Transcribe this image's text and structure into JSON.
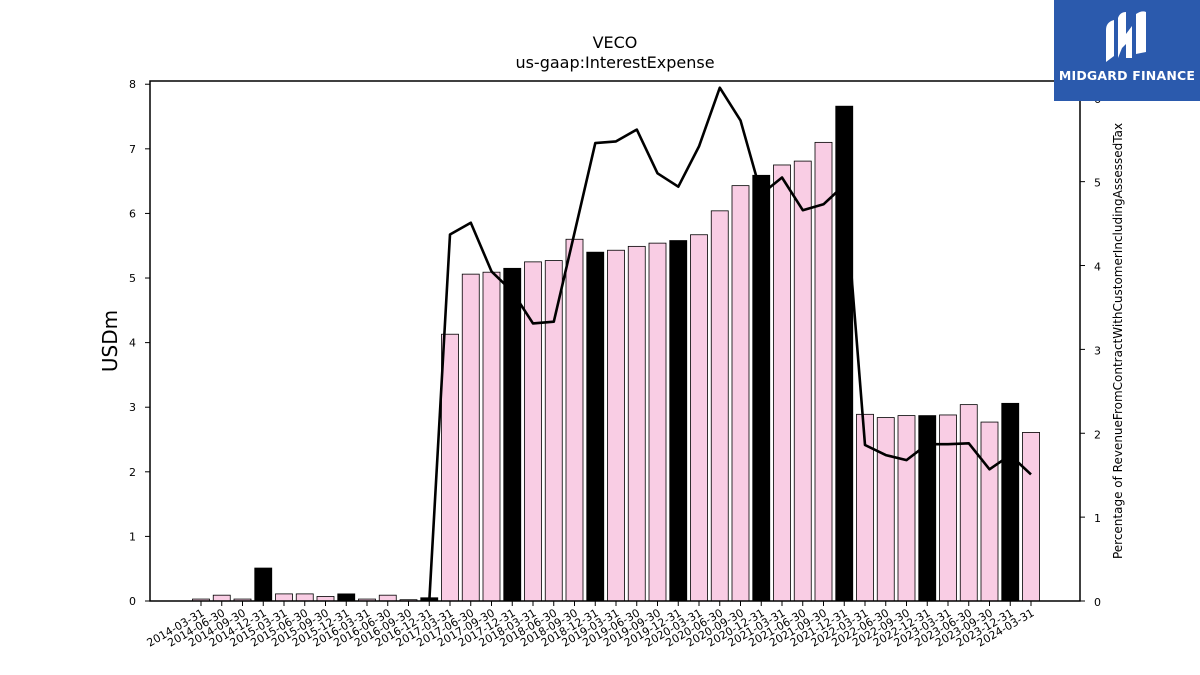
{
  "header": {
    "title": "VECO",
    "subtitle": "us-gaap:InterestExpense"
  },
  "brand": {
    "name": "MIDGARD FINANCE",
    "logo_icon": "midgard-m-logo-icon",
    "bg_color": "#2b5aad"
  },
  "chart_data": {
    "type": "bar",
    "title": "VECO",
    "subtitle": "us-gaap:InterestExpense",
    "ylabel": "USDm",
    "y2label": "Percentage of RevenueFromContractWithCustomerIncludingAssessedTax",
    "ylim": [
      0,
      8.05
    ],
    "y2lim": [
      0,
      6.2
    ],
    "yticks": [
      "0",
      "1",
      "2",
      "3",
      "4",
      "5",
      "6",
      "7",
      "8"
    ],
    "y2ticks": [
      "0",
      "1",
      "2",
      "3",
      "4",
      "5",
      "6"
    ],
    "colors": {
      "quarter_bar": "#f9cde4",
      "annual_bar": "#000000",
      "line": "#000000"
    },
    "categories": [
      "2014-03-31",
      "2014-06-30",
      "2014-09-30",
      "2014-12-31",
      "2015-03-31",
      "2015-06-30",
      "2015-09-30",
      "2015-12-31",
      "2016-03-31",
      "2016-06-30",
      "2016-09-30",
      "2016-12-31",
      "2017-03-31",
      "2017-06-30",
      "2017-09-30",
      "2017-12-31",
      "2018-03-31",
      "2018-06-30",
      "2018-09-30",
      "2018-12-31",
      "2019-03-31",
      "2019-06-30",
      "2019-09-30",
      "2019-12-31",
      "2020-03-31",
      "2020-06-30",
      "2020-09-30",
      "2020-12-31",
      "2021-03-31",
      "2021-06-30",
      "2021-09-30",
      "2021-12-31",
      "2022-03-31",
      "2022-06-30",
      "2022-09-30",
      "2022-12-31",
      "2023-03-31",
      "2023-06-30",
      "2023-09-30",
      "2023-12-31",
      "2024-03-31"
    ],
    "series": [
      {
        "kind": "bar",
        "values": [
          0.03,
          0.09,
          0.03,
          0.51,
          0.11,
          0.11,
          0.07,
          0.11,
          0.03,
          0.09,
          0.02,
          0.05,
          4.13,
          5.06,
          5.09,
          5.15,
          5.25,
          5.27,
          5.6,
          5.4,
          5.43,
          5.49,
          5.54,
          5.58,
          5.67,
          6.04,
          6.43,
          6.59,
          6.75,
          6.81,
          7.1,
          7.66,
          2.89,
          2.84,
          2.87,
          2.87,
          2.88,
          3.04,
          2.77,
          3.06,
          2.61
        ],
        "highlight": [
          false,
          false,
          false,
          true,
          false,
          false,
          false,
          true,
          false,
          false,
          false,
          true,
          false,
          false,
          false,
          true,
          false,
          false,
          false,
          true,
          false,
          false,
          false,
          true,
          false,
          false,
          false,
          true,
          false,
          false,
          false,
          true,
          false,
          false,
          false,
          true,
          false,
          false,
          false,
          true,
          false
        ]
      },
      {
        "kind": "line",
        "axis": "right",
        "values": [
          null,
          null,
          null,
          null,
          null,
          null,
          null,
          null,
          null,
          null,
          null,
          0.0,
          4.37,
          4.51,
          3.93,
          3.69,
          3.31,
          3.33,
          4.39,
          5.46,
          5.48,
          5.62,
          5.1,
          4.94,
          5.42,
          6.12,
          5.73,
          4.85,
          5.05,
          4.66,
          4.73,
          4.96,
          1.86,
          1.74,
          1.68,
          1.87,
          1.87,
          1.88,
          1.57,
          1.74,
          1.51
        ]
      }
    ]
  }
}
